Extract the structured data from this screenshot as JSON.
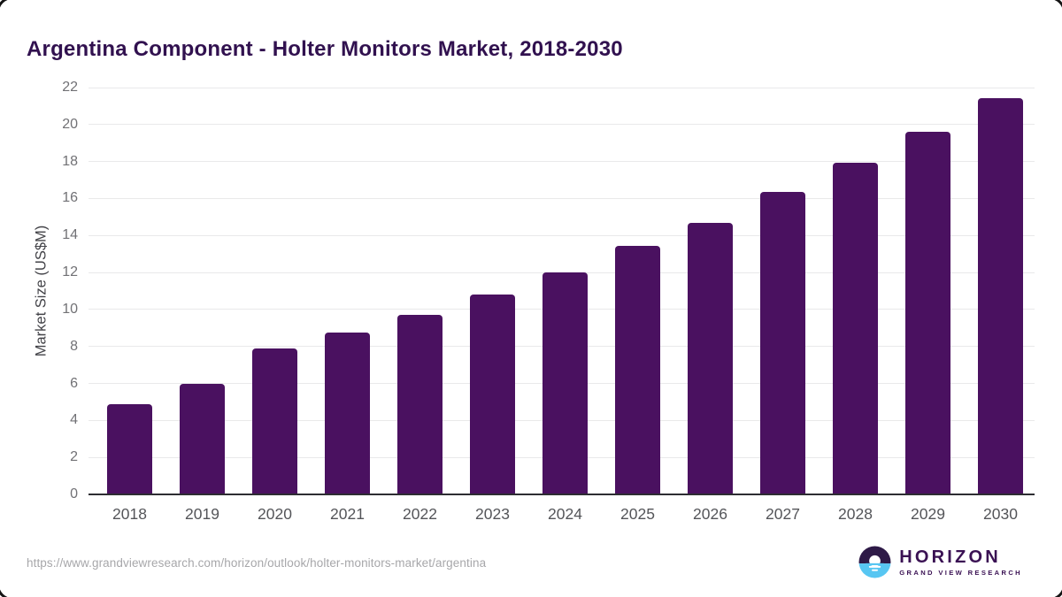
{
  "chart_data": {
    "type": "bar",
    "title": "Argentina Component - Holter Monitors Market, 2018-2030",
    "categories": [
      "2018",
      "2019",
      "2020",
      "2021",
      "2022",
      "2023",
      "2024",
      "2025",
      "2026",
      "2027",
      "2028",
      "2029",
      "2030"
    ],
    "values": [
      4.85,
      5.95,
      7.85,
      8.7,
      9.65,
      10.75,
      11.95,
      13.4,
      14.65,
      16.3,
      17.9,
      19.55,
      21.4
    ],
    "xlabel": "",
    "ylabel": "Market Size (US$M)",
    "ylim": [
      0,
      22
    ],
    "yticks": [
      0,
      2,
      4,
      6,
      8,
      10,
      12,
      14,
      16,
      18,
      20,
      22
    ],
    "grid": true,
    "legend": false,
    "bar_color": "#4A1160",
    "gridline_color": "#e9e9ea",
    "axis_line_color": "#2d2d32"
  },
  "footer": {
    "source_url": "https://www.grandviewresearch.com/horizon/outlook/holter-monitors-market/argentina",
    "logo": {
      "name": "HORIZON",
      "subtext": "GRAND VIEW RESEARCH",
      "icon_dark_color": "#2E1A47",
      "icon_blue_color": "#57C6F2"
    }
  }
}
